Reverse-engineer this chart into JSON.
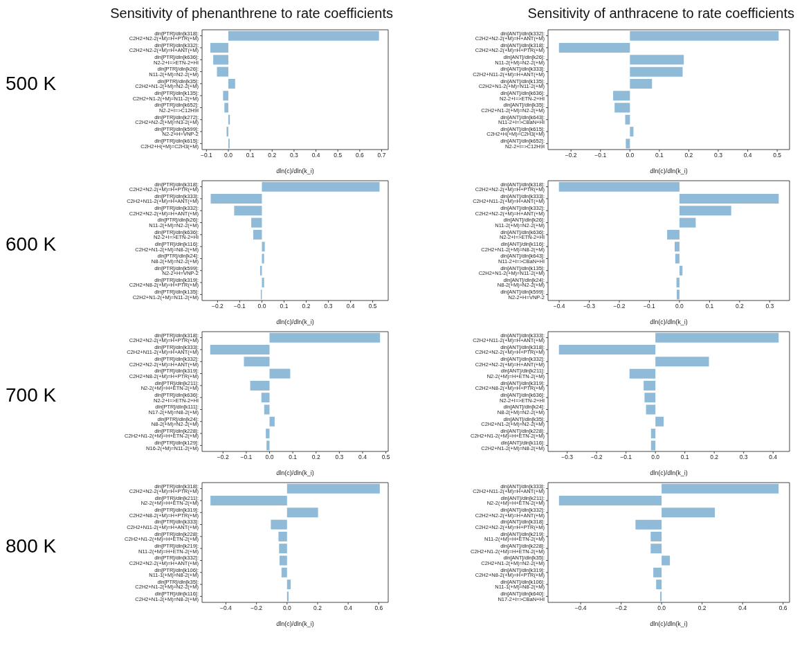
{
  "chart_data": [
    {
      "type": "bar",
      "orientation": "horizontal",
      "title": "Sensitivity of phenanthrene to rate coefficients",
      "annotations": [
        "500 K"
      ],
      "xlabel": "dln(c)/dln(k_i)",
      "color": "#8fbbd9",
      "categories": [
        "dln[PTR]/dln[k318]: C2H2+N2-2(+M)=H+PTR(+M)",
        "dln[PTR]/dln[k332]: C2H2+N2-2(+M)=H+ANT(+M)",
        "dln[PTR]/dln[k636]: N2-2+I=>ETN-2+HI",
        "dln[PTR]/dln[k26]: N11-2(+M)=N2-2(+M)",
        "dln[PTR]/dln[k35]: C2H2+N1-2(+M)=N2-2(+M)",
        "dln[PTR]/dln[k135]: C2H2+N1-2(+M)=N11-2(+M)",
        "dln[PTR]/dln[k652]: N2-2+I=>C12H9I",
        "dln[PTR]/dln[k272]: C2H2+N2-2(+M)=N3-2(+M)",
        "dln[PTR]/dln[k599]: N2-2+H=VNP-2",
        "dln[PTR]/dln[k615]: C2H2+H(+M)=C2H3(+M)"
      ],
      "values": [
        0.688,
        -0.082,
        -0.069,
        -0.052,
        0.031,
        -0.024,
        -0.018,
        0.007,
        -0.008,
        0.006
      ],
      "xlim": [
        -0.12,
        0.73
      ],
      "xticks": [
        {
          "value": -0.1,
          "label": "−0.1"
        },
        {
          "value": 0,
          "label": "0.0"
        },
        0.1,
        0.2,
        0.3,
        0.4,
        0.5,
        0.6,
        0.7
      ]
    },
    {
      "type": "bar",
      "orientation": "horizontal",
      "title": "Sensitivity of anthracene to rate coefficients",
      "xlabel": "dln(c)/dln(k_i)",
      "color": "#8fbbd9",
      "categories": [
        "dln[ANT]/dln[k332]: C2H2+N2-2(+M)=H+ANT(+M)",
        "dln[ANT]/dln[k318]: C2H2+N2-2(+M)=H+PTR(+M)",
        "dln[ANT]/dln[k26]: N11-2(+M)=N2-2(+M)",
        "dln[ANT]/dln[k333]: C2H2+N11-2(+M)=H+ANT(+M)",
        "dln[ANT]/dln[k135]: C2H2+N1-2(+M)=N11-2(+M)",
        "dln[ANT]/dln[k636]: N2-2+I=>ETN-2+HI",
        "dln[ANT]/dln[k35]: C2H2+N1-2(+M)=N2-2(+M)",
        "dln[ANT]/dln[k643]: N11-2+I=>CBaN+HI",
        "dln[ANT]/dln[k615]: C2H2+H(+M)=C2H3(+M)",
        "dln[ANT]/dln[k652]: N2-2+I=>C12H9I"
      ],
      "values": [
        0.505,
        -0.241,
        0.183,
        0.179,
        0.075,
        -0.057,
        -0.052,
        -0.016,
        0.012,
        -0.014
      ],
      "xlim": [
        -0.278,
        0.542
      ],
      "xticks": [
        {
          "value": -0.2,
          "label": "−0.2"
        },
        {
          "value": -0.1,
          "label": "−0.1"
        },
        {
          "value": 0,
          "label": "0.0"
        },
        0.1,
        0.2,
        0.3,
        0.4,
        0.5
      ]
    },
    {
      "type": "bar",
      "orientation": "horizontal",
      "annotations": [
        "600 K"
      ],
      "xlabel": "dln(c)/dln(k_i)",
      "color": "#8fbbd9",
      "categories": [
        "dln[PTR]/dln[k318]: C2H2+N2-2(+M)=H+PTR(+M)",
        "dln[PTR]/dln[k333]: C2H2+N11-2(+M)=H+ANT(+M)",
        "dln[PTR]/dln[k332]: C2H2+N2-2(+M)=H+ANT(+M)",
        "dln[PTR]/dln[k26]: N11-2(+M)=N2-2(+M)",
        "dln[PTR]/dln[k636]: N2-2+I=>ETN-2+HI",
        "dln[PTR]/dln[k116]: C2H2+N1-2(+M)=N8-2(+M)",
        "dln[PTR]/dln[k24]: N8-2(+M)=N2-2(+M)",
        "dln[PTR]/dln[k599]: N2-2+H=VNP-2",
        "dln[PTR]/dln[k319]: C2H2+N8-2(+M)=H+PTR(+M)",
        "dln[PTR]/dln[k135]: C2H2+N1-2(+M)=N11-2(+M)"
      ],
      "values": [
        0.531,
        -0.231,
        -0.125,
        -0.048,
        -0.039,
        0.013,
        0.01,
        -0.008,
        0.01,
        -0.005
      ],
      "xlim": [
        -0.27,
        0.57
      ],
      "xticks": [
        {
          "value": -0.2,
          "label": "−0.2"
        },
        {
          "value": -0.1,
          "label": "−0.1"
        },
        {
          "value": 0,
          "label": "0.0"
        },
        0.1,
        0.2,
        0.3,
        0.4,
        0.5
      ]
    },
    {
      "type": "bar",
      "orientation": "horizontal",
      "xlabel": "dln(c)/dln(k_i)",
      "color": "#8fbbd9",
      "categories": [
        "dln[ANT]/dln[k318]: C2H2+N2-2(+M)=H+PTR(+M)",
        "dln[ANT]/dln[k333]: C2H2+N11-2(+M)=H+ANT(+M)",
        "dln[ANT]/dln[k332]: C2H2+N2-2(+M)=H+ANT(+M)",
        "dln[ANT]/dln[k26]: N11-2(+M)=N2-2(+M)",
        "dln[ANT]/dln[k636]: N2-2+I=>ETN-2+HI",
        "dln[ANT]/dln[k116]: C2H2+N1-2(+M)=N8-2(+M)",
        "dln[ANT]/dln[k643]: N11-2+I=>CBaN+HI",
        "dln[ANT]/dln[k135]: C2H2+N1-2(+M)=N11-2(+M)",
        "dln[ANT]/dln[k24]: N8-2(+M)=N2-2(+M)",
        "dln[ANT]/dln[k599]: N2-2+H=VNP-2"
      ],
      "values": [
        -0.401,
        0.33,
        0.172,
        0.054,
        -0.041,
        -0.016,
        -0.014,
        0.01,
        -0.01,
        -0.009
      ],
      "xlim": [
        -0.437,
        0.366
      ],
      "xticks": [
        {
          "value": -0.4,
          "label": "−0.4"
        },
        {
          "value": -0.3,
          "label": "−0.3"
        },
        {
          "value": -0.2,
          "label": "−0.2"
        },
        {
          "value": -0.1,
          "label": "−0.1"
        },
        {
          "value": 0,
          "label": "0.0"
        },
        0.1,
        0.2,
        0.3
      ]
    },
    {
      "type": "bar",
      "orientation": "horizontal",
      "annotations": [
        "700 K"
      ],
      "xlabel": "dln(c)/dln(k_i)",
      "color": "#8fbbd9",
      "categories": [
        "dln[PTR]/dln[k318]: C2H2+N2-2(+M)=H+PTR(+M)",
        "dln[PTR]/dln[k333]: C2H2+N11-2(+M)=H+ANT(+M)",
        "dln[PTR]/dln[k332]: C2H2+N2-2(+M)=H+ANT(+M)",
        "dln[PTR]/dln[k319]: C2H2+N8-2(+M)=H+PTR(+M)",
        "dln[PTR]/dln[k211]: N2-2(+M)=H+ETN-2(+M)",
        "dln[PTR]/dln[k636]: N2-2+I=>ETN-2+HI",
        "dln[PTR]/dln[k111]: N17-2(+M)=N8-2(+M)",
        "dln[PTR]/dln[k24]: N8-2(+M)=N2-2(+M)",
        "dln[PTR]/dln[k228]: C2H2+N1-2(+M)=H+ETN-2(+M)",
        "dln[PTR]/dln[k129]: N16-2(+M)=N11-2(+M)"
      ],
      "values": [
        0.475,
        -0.255,
        -0.11,
        0.089,
        -0.083,
        -0.035,
        -0.023,
        0.022,
        -0.016,
        -0.013
      ],
      "xlim": [
        -0.29,
        0.51
      ],
      "xticks": [
        {
          "value": -0.2,
          "label": "−0.2"
        },
        {
          "value": -0.1,
          "label": "−0.1"
        },
        {
          "value": 0,
          "label": "0.0"
        },
        0.1,
        0.2,
        0.3,
        0.4,
        0.5
      ]
    },
    {
      "type": "bar",
      "orientation": "horizontal",
      "xlabel": "dln(c)/dln(k_i)",
      "color": "#8fbbd9",
      "categories": [
        "dln[ANT]/dln[k333]: C2H2+N11-2(+M)=H+ANT(+M)",
        "dln[ANT]/dln[k318]: C2H2+N2-2(+M)=H+PTR(+M)",
        "dln[ANT]/dln[k332]: C2H2+N2-2(+M)=H+ANT(+M)",
        "dln[ANT]/dln[k211]: N2-2(+M)=H+ETN-2(+M)",
        "dln[ANT]/dln[k319]: C2H2+N8-2(+M)=H+PTR(+M)",
        "dln[ANT]/dln[k636]: N2-2+I=>ETN-2+HI",
        "dln[ANT]/dln[k24]: N8-2(+M)=N2-2(+M)",
        "dln[ANT]/dln[k35]: C2H2+N1-2(+M)=N2-2(+M)",
        "dln[ANT]/dln[k228]: C2H2+N1-2(+M)=H+ETN-2(+M)",
        "dln[ANT]/dln[k116]: C2H2+N1-2(+M)=N8-2(+M)"
      ],
      "values": [
        0.419,
        -0.328,
        0.182,
        -0.088,
        -0.04,
        -0.037,
        -0.032,
        0.028,
        -0.015,
        -0.015
      ],
      "xlim": [
        -0.365,
        0.456
      ],
      "xticks": [
        {
          "value": -0.3,
          "label": "−0.3"
        },
        {
          "value": -0.2,
          "label": "−0.2"
        },
        {
          "value": -0.1,
          "label": "−0.1"
        },
        {
          "value": 0,
          "label": "0.0"
        },
        0.1,
        0.2,
        0.3,
        0.4
      ]
    },
    {
      "type": "bar",
      "orientation": "horizontal",
      "annotations": [
        "800 K"
      ],
      "xlabel": "dln(c)/dln(k_i)",
      "color": "#8fbbd9",
      "categories": [
        "dln[PTR]/dln[k318]: C2H2+N2-2(+M)=H+PTR(+M)",
        "dln[PTR]/dln[k211]: N2-2(+M)=H+ETN-2(+M)",
        "dln[PTR]/dln[k319]: C2H2+N8-2(+M)=H+PTR(+M)",
        "dln[PTR]/dln[k333]: C2H2+N11-2(+M)=H+ANT(+M)",
        "dln[PTR]/dln[k228]: C2H2+N1-2(+M)=H+ETN-2(+M)",
        "dln[PTR]/dln[k219]: N11-2(+M)=H+ETN-2(+M)",
        "dln[PTR]/dln[k332]: C2H2+N2-2(+M)=H+ANT(+M)",
        "dln[PTR]/dln[k106]: N11-1(+M)=N8-2(+M)",
        "dln[PTR]/dln[k35]: C2H2+N1-2(+M)=N2-2(+M)",
        "dln[PTR]/dln[k116]: C2H2+N1-2(+M)=N8-2(+M)"
      ],
      "values": [
        0.607,
        -0.501,
        0.203,
        -0.106,
        -0.056,
        -0.052,
        -0.049,
        -0.036,
        0.024,
        0.01
      ],
      "xlim": [
        -0.556,
        0.662
      ],
      "xticks": [
        {
          "value": -0.4,
          "label": "−0.4"
        },
        {
          "value": -0.2,
          "label": "−0.2"
        },
        {
          "value": 0,
          "label": "0.0"
        },
        0.2,
        0.4,
        0.6
      ]
    },
    {
      "type": "bar",
      "orientation": "horizontal",
      "xlabel": "dln(c)/dln(k_i)",
      "color": "#8fbbd9",
      "categories": [
        "dln[ANT]/dln[k333]: C2H2+N11-2(+M)=H+ANT(+M)",
        "dln[ANT]/dln[k211]: N2-2(+M)=H+ETN-2(+M)",
        "dln[ANT]/dln[k332]: C2H2+N2-2(+M)=H+ANT(+M)",
        "dln[ANT]/dln[k318]: C2H2+N2-2(+M)=H+PTR(+M)",
        "dln[ANT]/dln[k219]: N11-2(+M)=H+ETN-2(+M)",
        "dln[ANT]/dln[k228]: C2H2+N1-2(+M)=H+ETN-2(+M)",
        "dln[ANT]/dln[k35]: C2H2+N1-2(+M)=N2-2(+M)",
        "dln[ANT]/dln[k319]: C2H2+N8-2(+M)=H+PTR(+M)",
        "dln[ANT]/dln[k106]: N11-1(+M)=N8-2(+M)",
        "dln[ANT]/dln[k640]: N17-2+I=>CBaN+HI"
      ],
      "values": [
        0.578,
        -0.507,
        0.263,
        -0.129,
        -0.054,
        -0.054,
        0.041,
        -0.041,
        -0.027,
        -0.007
      ],
      "xlim": [
        -0.561,
        0.632
      ],
      "xticks": [
        {
          "value": -0.4,
          "label": "−0.4"
        },
        {
          "value": -0.2,
          "label": "−0.2"
        },
        {
          "value": 0,
          "label": "0.0"
        },
        0.2,
        0.4,
        0.6
      ]
    }
  ]
}
